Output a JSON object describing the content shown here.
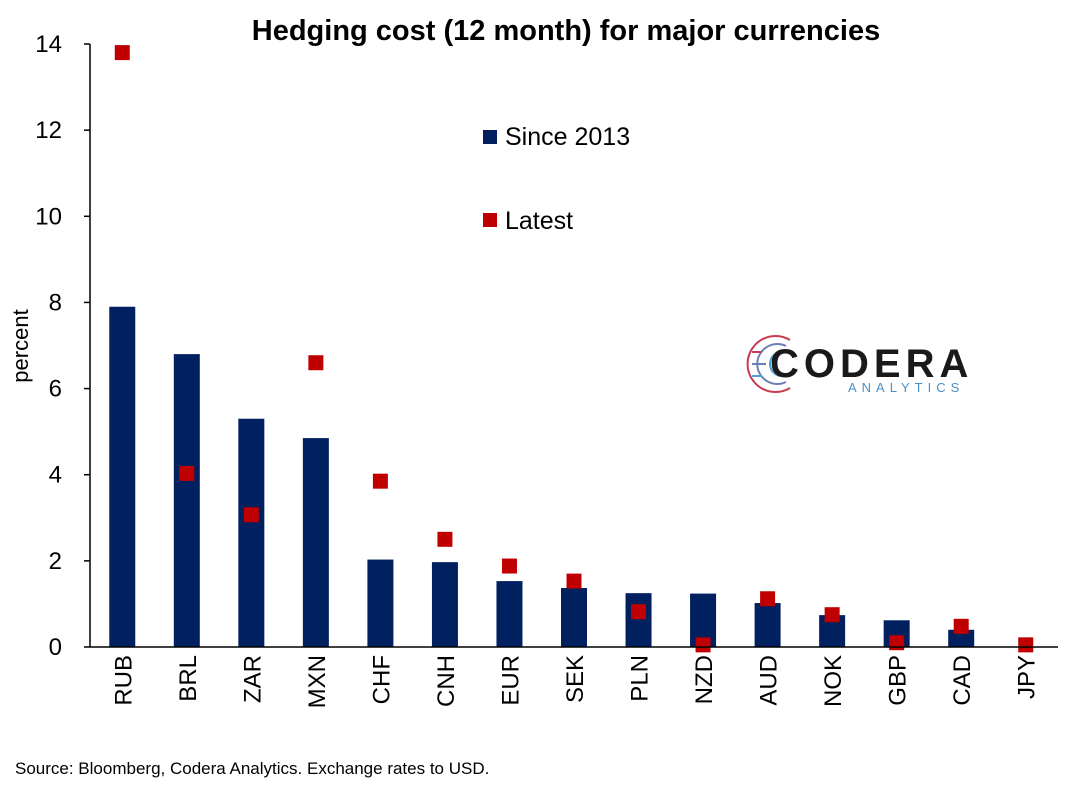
{
  "chart_data": {
    "type": "bar",
    "title": "Hedging cost (12 month) for major currencies",
    "ylabel": "percent",
    "xlabel": "",
    "ylim": [
      0,
      14
    ],
    "yticks": [
      "0",
      "2",
      "4",
      "6",
      "8",
      "10",
      "12",
      "14"
    ],
    "categories": [
      "RUB",
      "BRL",
      "ZAR",
      "MXN",
      "CHF",
      "CNH",
      "EUR",
      "SEK",
      "PLN",
      "NZD",
      "AUD",
      "NOK",
      "GBP",
      "CAD",
      "JPY"
    ],
    "series": [
      {
        "name": "Since 2013",
        "kind": "bar",
        "color": "#002060",
        "values": [
          7.9,
          6.8,
          5.3,
          4.85,
          2.03,
          1.97,
          1.53,
          1.37,
          1.25,
          1.24,
          1.02,
          0.74,
          0.62,
          0.4,
          0.0
        ]
      },
      {
        "name": "Latest",
        "kind": "marker",
        "color": "#c00000",
        "values": [
          13.8,
          4.03,
          3.07,
          6.6,
          3.85,
          2.5,
          1.88,
          1.53,
          0.82,
          0.05,
          1.12,
          0.75,
          0.1,
          0.48,
          0.05
        ]
      }
    ],
    "legend": "upper-center",
    "grid": false
  },
  "logo": {
    "name": "CODERA",
    "tagline": "ANALYTICS"
  },
  "source": "Source: Bloomberg, Codera Analytics. Exchange rates to USD."
}
